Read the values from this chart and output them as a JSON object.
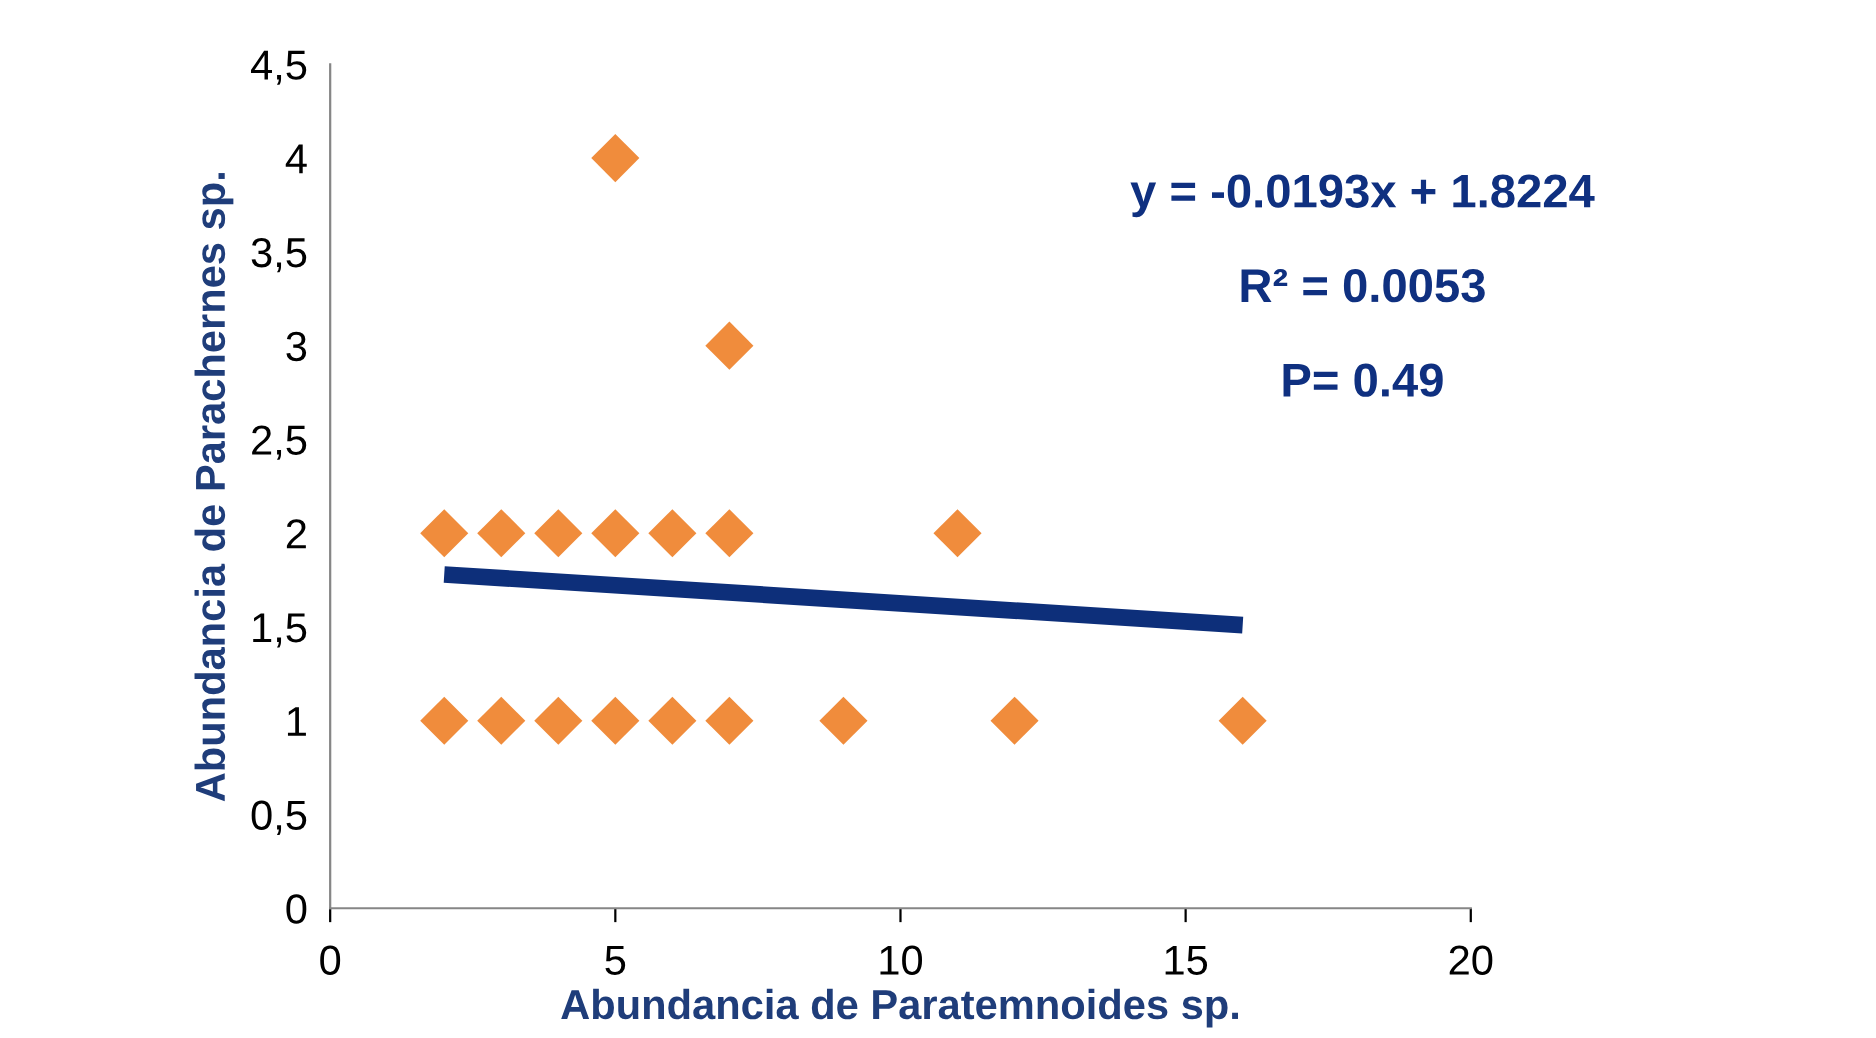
{
  "chart_data": {
    "type": "scatter",
    "xlabel": "Abundancia de Paratemnoides sp.",
    "ylabel": "Abundancia de Parachernes sp.",
    "x": [
      2,
      3,
      4,
      5,
      6,
      7,
      11,
      5,
      7,
      2,
      3,
      4,
      5,
      6,
      7,
      9,
      12,
      16
    ],
    "series": [
      {
        "type": "scatter",
        "color": "#f08c3c",
        "marker": "diamond",
        "values": [
          2,
          2,
          2,
          2,
          2,
          2,
          2,
          4,
          3,
          1,
          1,
          1,
          1,
          1,
          1,
          1,
          1,
          1
        ]
      },
      {
        "type": "line",
        "color": "#0d2f7a",
        "marker": "none",
        "line_style": "solid",
        "x": [
          2,
          16
        ],
        "values": [
          1.78,
          1.51
        ]
      }
    ],
    "annotations": [
      "y = -0.0193x + 1.8224",
      "R² = 0.0053",
      "P= 0.49"
    ],
    "xlim": [
      0,
      20
    ],
    "xticks": [
      0,
      5,
      10,
      15,
      20
    ],
    "ylim": [
      0,
      4.5
    ],
    "yticks": [
      0,
      {
        "value": 0.5,
        "label": "0,5"
      },
      1,
      {
        "value": 1.5,
        "label": "1,5"
      },
      2,
      {
        "value": 2.5,
        "label": "2,5"
      },
      3,
      {
        "value": 3.5,
        "label": "3,5"
      },
      4,
      {
        "value": 4.5,
        "label": "4,5"
      }
    ],
    "grid": false,
    "legend": false
  }
}
